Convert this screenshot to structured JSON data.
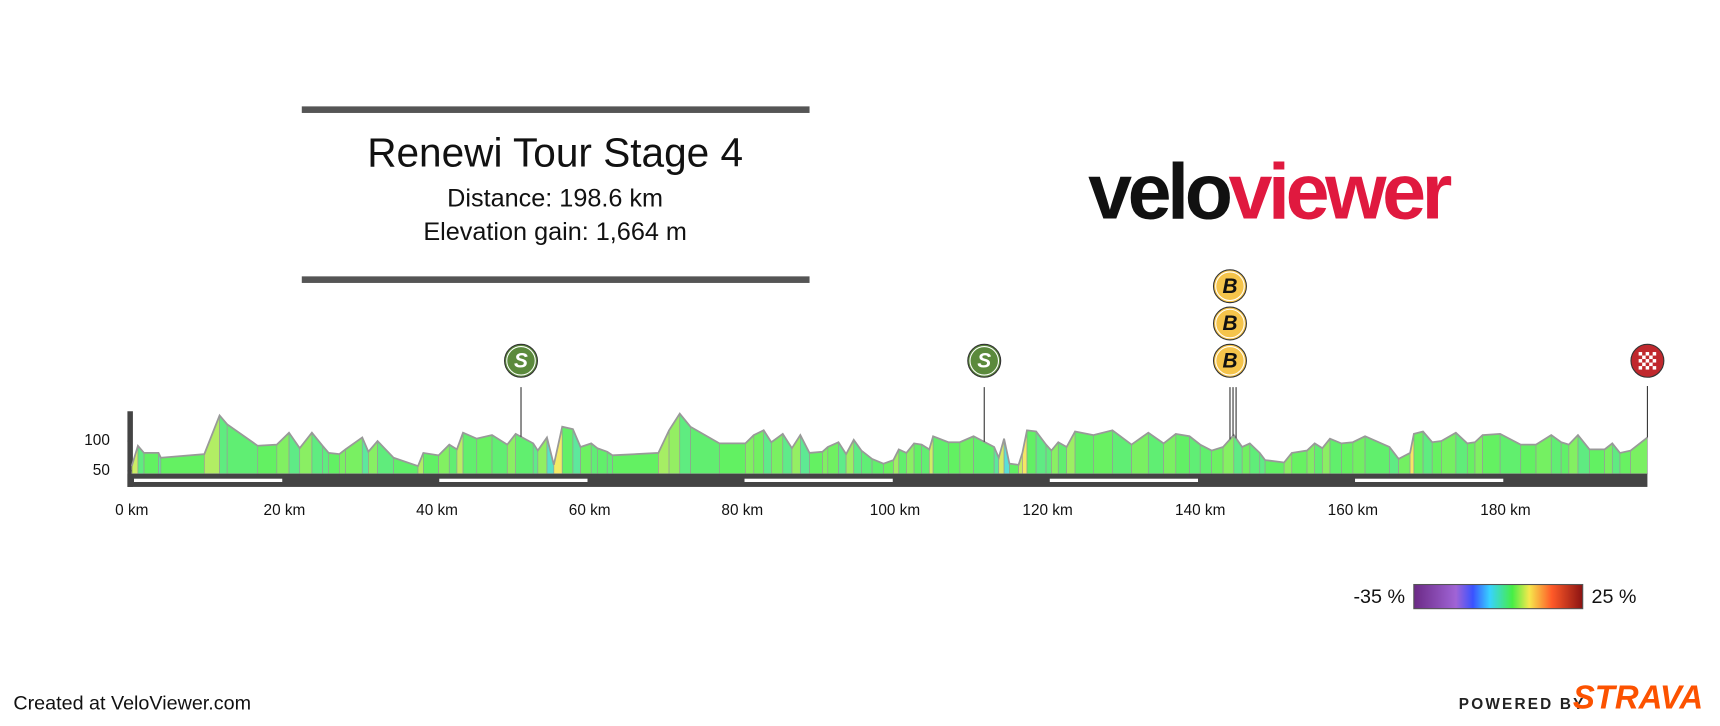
{
  "chart_data": {
    "type": "elevation-profile",
    "title": "Renewi Tour Stage 4",
    "subtitle": [
      "Distance: 198.6 km",
      "Elevation gain: 1,664 m"
    ],
    "logo": [
      "velo",
      "viewer"
    ],
    "x": [
      0,
      0.8,
      1.6,
      3.5,
      3.8,
      9.5,
      11.5,
      12.5,
      16.5,
      19,
      20.6,
      22,
      23.6,
      25,
      25.8,
      27.2,
      28,
      30.2,
      31,
      32.2,
      34.3,
      37.5,
      38.2,
      40.2,
      41.6,
      42.6,
      43.4,
      45.2,
      47.2,
      49.2,
      50.3,
      52.6,
      53.2,
      54.4,
      55.3,
      56.4,
      57.8,
      58.8,
      60.2,
      61,
      62.3,
      63,
      69,
      70.4,
      71.8,
      73.2,
      77,
      80.4,
      81.5,
      82.8,
      83.8,
      85.3,
      86.5,
      87.6,
      88.8,
      90.5,
      91.2,
      92.6,
      93.6,
      94.6,
      95.6,
      97,
      98.5,
      99.8,
      100.5,
      101.5,
      102.5,
      103.5,
      104.5,
      105,
      107,
      108.5,
      110.3,
      113,
      113.6,
      114.3,
      115,
      116.2,
      116.7,
      117.3,
      118.5,
      119.8,
      120.5,
      121.4,
      122.5,
      123.6,
      126,
      128.5,
      131,
      133.2,
      135.2,
      136.8,
      138.6,
      140,
      141.5,
      143,
      144.4,
      145.5,
      146.5,
      147.8,
      148.5,
      151,
      152,
      154,
      155,
      156,
      157,
      158.5,
      160,
      161.6,
      164.8,
      166,
      167.5,
      168,
      169.2,
      170.4,
      171.6,
      173.5,
      175,
      176,
      177,
      179.3,
      182,
      184,
      186,
      187.3,
      188.3,
      189.5,
      191,
      193,
      194,
      195,
      196.4,
      198.6
    ],
    "values": [
      58,
      92,
      80,
      80,
      72,
      78,
      143,
      128,
      92,
      94,
      114,
      88,
      114,
      92,
      80,
      78,
      86,
      106,
      82,
      100,
      72,
      58,
      80,
      76,
      94,
      86,
      114,
      104,
      110,
      94,
      112,
      96,
      84,
      106,
      60,
      124,
      120,
      90,
      96,
      88,
      82,
      76,
      80,
      118,
      146,
      124,
      96,
      96,
      110,
      118,
      98,
      112,
      88,
      110,
      80,
      82,
      90,
      98,
      78,
      102,
      84,
      70,
      62,
      68,
      86,
      80,
      96,
      94,
      86,
      108,
      98,
      98,
      108,
      90,
      72,
      104,
      62,
      60,
      80,
      118,
      116,
      94,
      84,
      98,
      90,
      116,
      110,
      118,
      94,
      114,
      96,
      112,
      108,
      94,
      84,
      90,
      110,
      90,
      96,
      80,
      68,
      64,
      80,
      84,
      96,
      88,
      104,
      96,
      98,
      108,
      90,
      70,
      80,
      112,
      116,
      98,
      100,
      114,
      96,
      98,
      110,
      112,
      94,
      94,
      110,
      98,
      94,
      110,
      86,
      86,
      96,
      80,
      84,
      106
    ],
    "xlim": [
      0,
      198.6
    ],
    "ylim": [
      45,
      150
    ],
    "xticks": [
      {
        "value": 0,
        "label": "0 km"
      },
      {
        "value": 20,
        "label": "20 km"
      },
      {
        "value": 40,
        "label": "40 km"
      },
      {
        "value": 60,
        "label": "60 km"
      },
      {
        "value": 80,
        "label": "80 km"
      },
      {
        "value": 100,
        "label": "100 km"
      },
      {
        "value": 120,
        "label": "120 km"
      },
      {
        "value": 140,
        "label": "140 km"
      },
      {
        "value": 160,
        "label": "160 km"
      },
      {
        "value": 180,
        "label": "180 km"
      }
    ],
    "yticks": [
      50,
      100
    ],
    "markers": [
      {
        "label": "S",
        "km": 51,
        "color": "#5b8a3c"
      },
      {
        "label": "S",
        "km": 111.7,
        "color": "#5b8a3c"
      },
      {
        "label": "B",
        "km": 143.9,
        "color": "#f5c44b"
      },
      {
        "label": "B",
        "km": 144.3,
        "color": "#f5c44b"
      },
      {
        "label": "B",
        "km": 144.7,
        "color": "#f5c44b"
      }
    ],
    "finish_km": 198.6,
    "gradient_stops": [
      {
        "value": -35,
        "color": "#6b2a85"
      },
      {
        "value": -20,
        "color": "#a064d6"
      },
      {
        "value": -14,
        "color": "#3a52ff"
      },
      {
        "value": -8,
        "color": "#38d2ff"
      },
      {
        "value": 0,
        "color": "#46ee46"
      },
      {
        "value": 6,
        "color": "#f6e84c"
      },
      {
        "value": 14,
        "color": "#ff5a28"
      },
      {
        "value": 25,
        "color": "#8a1212"
      }
    ],
    "gradient_labels": [
      {
        "value": -35,
        "label": "-35 %"
      },
      {
        "value": 25,
        "label": "25 %"
      }
    ],
    "footer": "Created at VeloViewer.com",
    "powered_by": [
      "POWERED BY",
      "STRAVA"
    ]
  }
}
